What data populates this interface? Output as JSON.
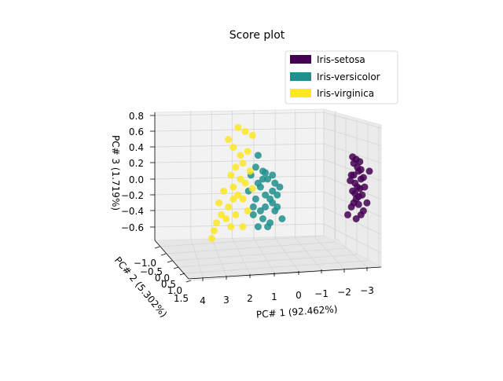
{
  "chart_data": {
    "type": "scatter",
    "title": "Score plot",
    "xlabel": "PC# 1 (92.462%)",
    "ylabel": "PC# 2 (5.302%)",
    "zlabel": "PC# 3 (1.719%)",
    "xticks": [
      "4",
      "3",
      "2",
      "1",
      "0",
      "−1",
      "−2",
      "−3"
    ],
    "yticks": [
      "−1.0",
      "−0.5",
      "0.0",
      "0.5",
      "1.0",
      "1.5"
    ],
    "zticks": [
      "0.8",
      "0.6",
      "0.4",
      "0.2",
      "0.0",
      "−0.2",
      "−0.4",
      "−0.6"
    ],
    "legend_position": "top-right",
    "series": [
      {
        "name": "Iris-setosa",
        "color": "#440154",
        "points": [
          [
            -2.4,
            0.25
          ],
          [
            -2.3,
            0.2
          ],
          [
            -2.5,
            0.1
          ],
          [
            -2.2,
            0.05
          ],
          [
            -2.6,
            0.0
          ],
          [
            -2.35,
            -0.05
          ],
          [
            -2.45,
            -0.1
          ],
          [
            -2.55,
            -0.12
          ],
          [
            -2.25,
            -0.15
          ],
          [
            -2.65,
            -0.2
          ],
          [
            -2.4,
            -0.25
          ],
          [
            -2.3,
            -0.3
          ],
          [
            -2.5,
            -0.32
          ],
          [
            -2.2,
            -0.35
          ],
          [
            -2.7,
            -0.4
          ],
          [
            -2.6,
            -0.45
          ],
          [
            -2.35,
            -0.18
          ],
          [
            -2.45,
            0.15
          ],
          [
            -2.75,
            -0.1
          ],
          [
            -2.15,
            -0.02
          ],
          [
            -2.55,
            0.22
          ],
          [
            -2.25,
            0.28
          ],
          [
            -2.85,
            -0.3
          ],
          [
            -2.05,
            -0.45
          ],
          [
            -2.95,
            0.1
          ],
          [
            -2.4,
            -0.5
          ],
          [
            -2.3,
            0.05
          ],
          [
            -2.6,
            0.12
          ],
          [
            -2.5,
            -0.22
          ],
          [
            -2.7,
            0.02
          ]
        ]
      },
      {
        "name": "Iris-versicolor",
        "color": "#21908d",
        "points": [
          [
            1.2,
            0.3
          ],
          [
            1.0,
            0.1
          ],
          [
            0.8,
            0.0
          ],
          [
            1.1,
            -0.1
          ],
          [
            0.6,
            -0.15
          ],
          [
            1.3,
            -0.25
          ],
          [
            0.9,
            -0.35
          ],
          [
            0.5,
            -0.4
          ],
          [
            1.4,
            -0.45
          ],
          [
            0.7,
            -0.55
          ],
          [
            1.0,
            0.0
          ],
          [
            0.4,
            -0.2
          ],
          [
            1.2,
            -0.05
          ],
          [
            0.3,
            -0.1
          ],
          [
            0.9,
            -0.2
          ],
          [
            0.6,
            -0.3
          ],
          [
            1.5,
            0.05
          ],
          [
            0.2,
            -0.5
          ],
          [
            1.1,
            -0.4
          ],
          [
            0.8,
            -0.6
          ],
          [
            1.3,
            0.15
          ],
          [
            0.5,
            -0.05
          ],
          [
            1.6,
            -0.15
          ],
          [
            0.7,
            -0.25
          ],
          [
            1.0,
            -0.5
          ],
          [
            0.4,
            -0.35
          ],
          [
            1.4,
            -0.35
          ],
          [
            0.9,
            0.08
          ],
          [
            1.2,
            -0.6
          ],
          [
            0.6,
            0.05
          ]
        ]
      },
      {
        "name": "Iris-virginica",
        "color": "#fde725",
        "points": [
          [
            2.2,
            0.65
          ],
          [
            1.9,
            0.6
          ],
          [
            1.6,
            0.55
          ],
          [
            2.6,
            0.5
          ],
          [
            2.4,
            0.4
          ],
          [
            1.8,
            0.35
          ],
          [
            2.0,
            0.2
          ],
          [
            2.3,
            0.15
          ],
          [
            1.7,
            0.1
          ],
          [
            2.5,
            0.05
          ],
          [
            2.1,
            0.0
          ],
          [
            1.9,
            -0.05
          ],
          [
            2.4,
            -0.1
          ],
          [
            2.8,
            -0.15
          ],
          [
            2.2,
            -0.2
          ],
          [
            2.0,
            -0.25
          ],
          [
            3.0,
            -0.3
          ],
          [
            2.6,
            -0.35
          ],
          [
            1.8,
            -0.4
          ],
          [
            2.3,
            -0.45
          ],
          [
            2.7,
            -0.5
          ],
          [
            3.1,
            -0.55
          ],
          [
            2.5,
            -0.6
          ],
          [
            3.2,
            -0.65
          ],
          [
            2.9,
            -0.45
          ],
          [
            1.6,
            -0.12
          ],
          [
            2.1,
            0.3
          ],
          [
            2.4,
            -0.25
          ],
          [
            3.3,
            -0.75
          ],
          [
            2.0,
            -0.6
          ]
        ]
      }
    ]
  }
}
